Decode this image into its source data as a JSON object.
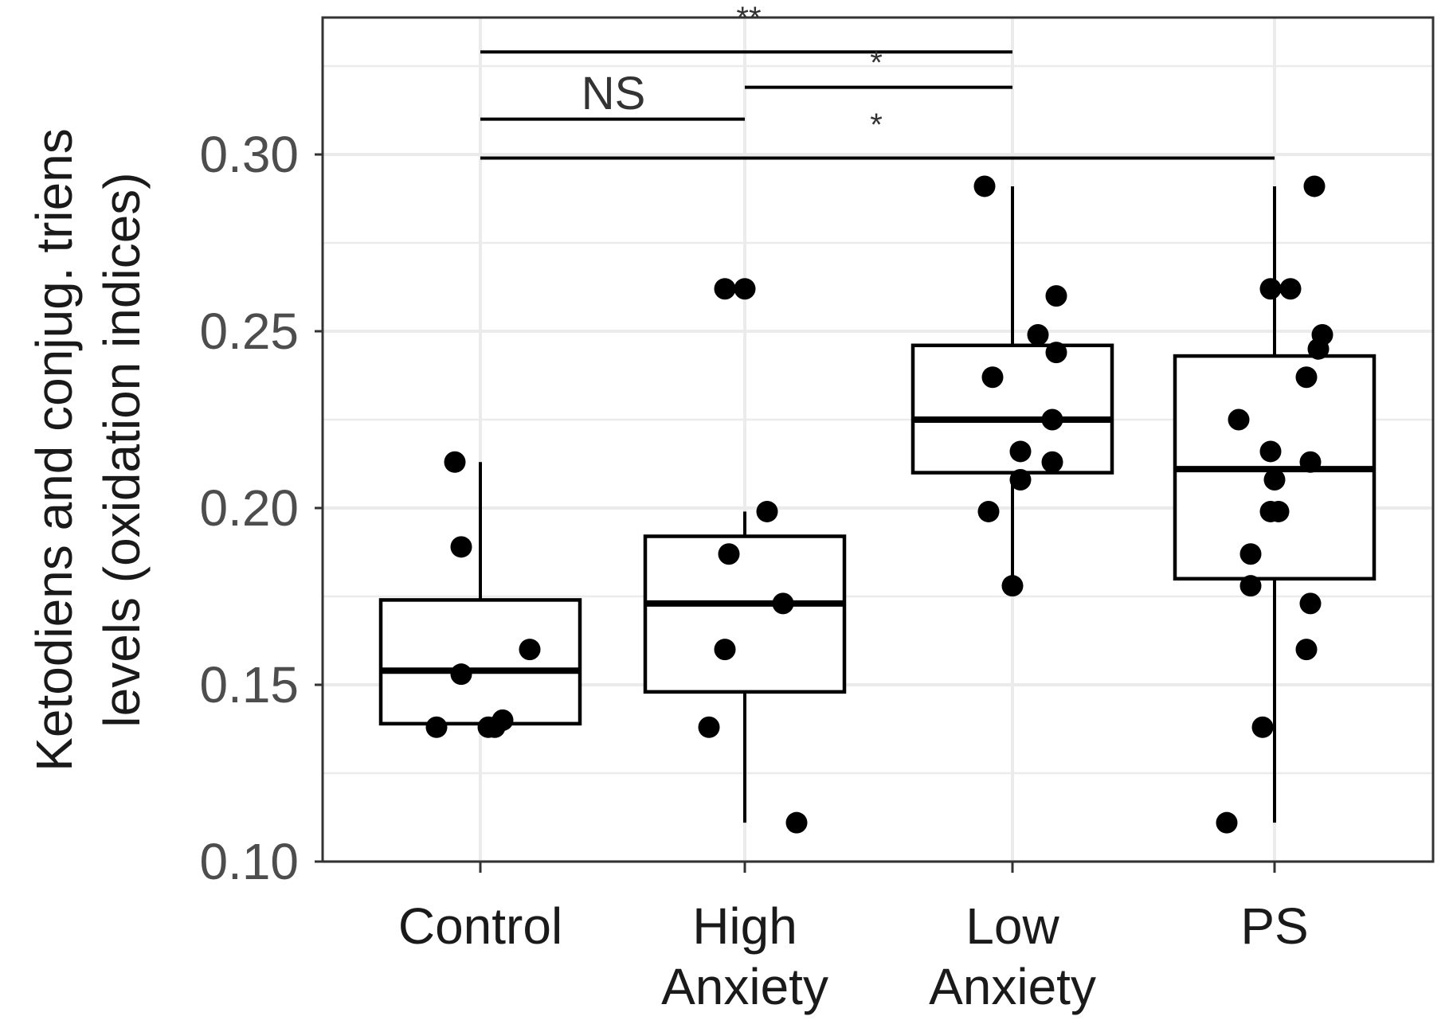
{
  "chart_data": {
    "type": "box",
    "categories": [
      "Control",
      "High Anxiety",
      "Low Anxiety",
      "PS"
    ],
    "category_labels": [
      [
        "Control"
      ],
      [
        "High",
        "Anxiety"
      ],
      [
        "Low",
        "Anxiety"
      ],
      [
        "PS"
      ]
    ],
    "ylabel_lines": [
      "Ketodiens and conjug. triens",
      "levels (oxidation indices)"
    ],
    "xlabel": "",
    "ylim": [
      0.1,
      0.34
    ],
    "yticks": [
      0.1,
      0.15,
      0.2,
      0.25,
      0.3
    ],
    "ytick_labels": [
      "0.10",
      "0.15",
      "0.20",
      "0.25",
      "0.30"
    ],
    "grid": true,
    "boxes": [
      {
        "category": "Control",
        "whisker_low": 0.138,
        "q1": 0.139,
        "median": 0.154,
        "q3": 0.174,
        "whisker_high": 0.213
      },
      {
        "category": "High Anxiety",
        "whisker_low": 0.111,
        "q1": 0.148,
        "median": 0.173,
        "q3": 0.192,
        "whisker_high": 0.199
      },
      {
        "category": "Low Anxiety",
        "whisker_low": 0.178,
        "q1": 0.21,
        "median": 0.225,
        "q3": 0.246,
        "whisker_high": 0.291
      },
      {
        "category": "PS",
        "whisker_low": 0.111,
        "q1": 0.18,
        "median": 0.211,
        "q3": 0.243,
        "whisker_high": 0.291
      }
    ],
    "points": [
      {
        "category": "Control",
        "values": [
          0.213,
          0.189,
          0.16,
          0.153,
          0.14,
          0.138,
          0.138,
          0.138
        ]
      },
      {
        "category": "High Anxiety",
        "values": [
          0.262,
          0.262,
          0.199,
          0.187,
          0.173,
          0.16,
          0.138,
          0.111
        ]
      },
      {
        "category": "Low Anxiety",
        "values": [
          0.291,
          0.26,
          0.249,
          0.244,
          0.237,
          0.225,
          0.216,
          0.213,
          0.208,
          0.199,
          0.178
        ]
      },
      {
        "category": "PS",
        "values": [
          0.291,
          0.262,
          0.262,
          0.249,
          0.245,
          0.237,
          0.225,
          0.216,
          0.213,
          0.208,
          0.199,
          0.199,
          0.187,
          0.178,
          0.173,
          0.16,
          0.138,
          0.111
        ]
      }
    ],
    "significance": [
      {
        "from": "Control",
        "to": "Low Anxiety",
        "y": 0.329,
        "label": "**"
      },
      {
        "from": "High Anxiety",
        "to": "Low Anxiety",
        "y": 0.319,
        "label": "*"
      },
      {
        "from": "Control",
        "to": "High Anxiety",
        "y": 0.31,
        "label": "NS"
      },
      {
        "from": "Control",
        "to": "PS",
        "y": 0.299,
        "label": "*"
      }
    ],
    "colors": {
      "box_line": "#000000",
      "point": "#000000",
      "grid": "#ebebeb",
      "panel_border": "#333333"
    }
  }
}
